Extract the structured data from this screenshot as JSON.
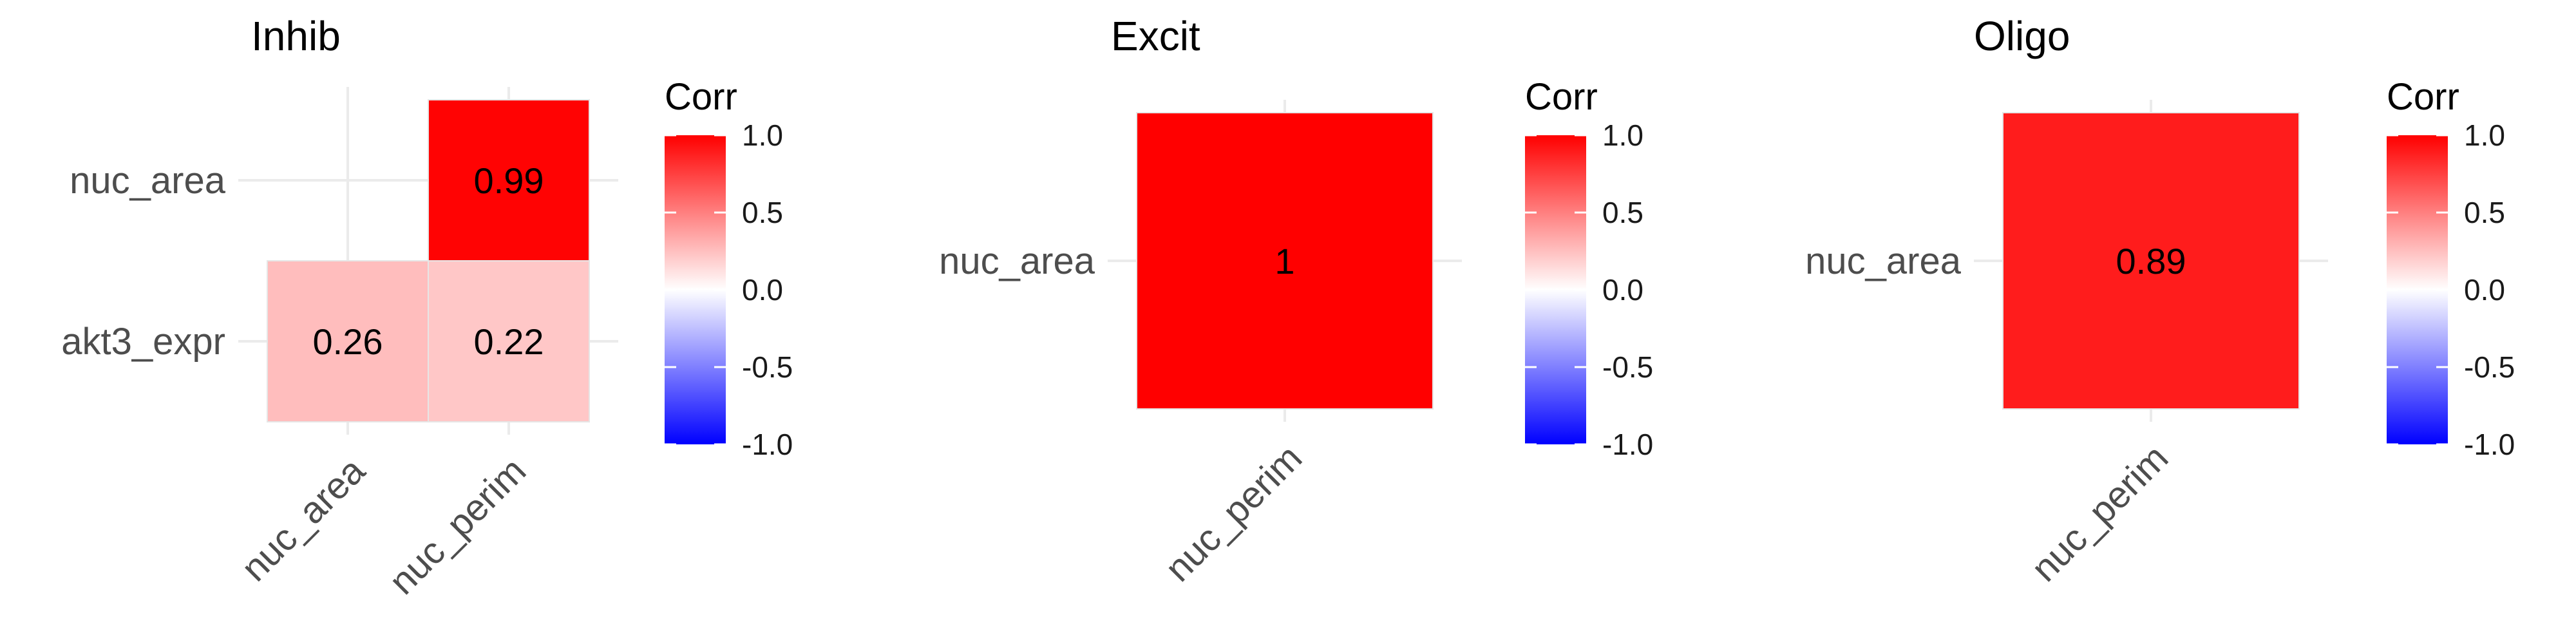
{
  "chart_data": [
    {
      "type": "heatmap",
      "title": "Inhib",
      "x_categories": [
        "nuc_area",
        "nuc_perim"
      ],
      "y_categories": [
        "akt3_expr",
        "nuc_area"
      ],
      "cells": [
        {
          "x": "nuc_area",
          "y": "akt3_expr",
          "value": 0.26,
          "label": "0.26"
        },
        {
          "x": "nuc_perim",
          "y": "akt3_expr",
          "value": 0.22,
          "label": "0.22"
        },
        {
          "x": "nuc_perim",
          "y": "nuc_area",
          "value": 0.99,
          "label": "0.99"
        }
      ],
      "legend": {
        "title": "Corr",
        "ticks": [
          "1.0",
          "0.5",
          "0.0",
          "-0.5",
          "-1.0"
        ],
        "range": [
          -1,
          1
        ],
        "position": "right"
      },
      "grid": true
    },
    {
      "type": "heatmap",
      "title": "Excit",
      "x_categories": [
        "nuc_perim"
      ],
      "y_categories": [
        "nuc_area"
      ],
      "cells": [
        {
          "x": "nuc_perim",
          "y": "nuc_area",
          "value": 1.0,
          "label": "1"
        }
      ],
      "legend": {
        "title": "Corr",
        "ticks": [
          "1.0",
          "0.5",
          "0.0",
          "-0.5",
          "-1.0"
        ],
        "range": [
          -1,
          1
        ],
        "position": "right"
      },
      "grid": true
    },
    {
      "type": "heatmap",
      "title": "Oligo",
      "x_categories": [
        "nuc_perim"
      ],
      "y_categories": [
        "nuc_area"
      ],
      "cells": [
        {
          "x": "nuc_perim",
          "y": "nuc_area",
          "value": 0.89,
          "label": "0.89"
        }
      ],
      "legend": {
        "title": "Corr",
        "ticks": [
          "1.0",
          "0.5",
          "0.0",
          "-0.5",
          "-1.0"
        ],
        "range": [
          -1,
          1
        ],
        "position": "right"
      },
      "grid": true
    }
  ],
  "colors": {
    "high": "#ff0000",
    "mid": "#ffffff",
    "low": "#0000ff",
    "grid": "#ebebeb",
    "text": "#4d4d4d",
    "title": "#000000"
  }
}
